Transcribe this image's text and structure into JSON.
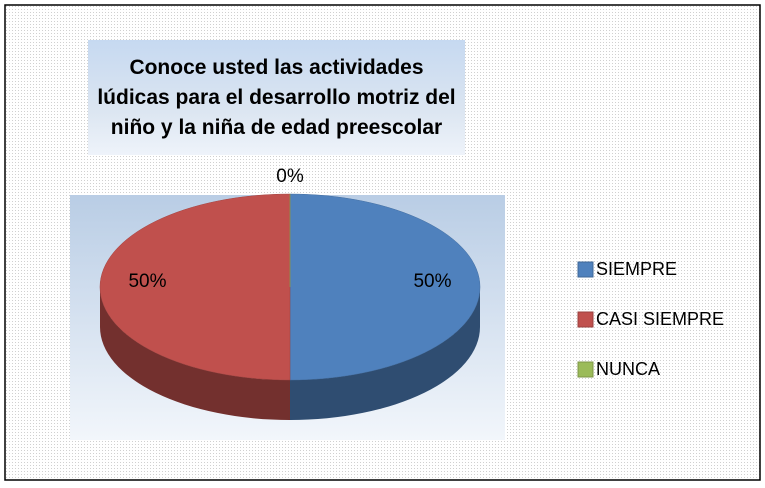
{
  "chart_data": {
    "type": "pie",
    "title": "Conoce usted las actividades lúdicas para el desarrollo motriz del niño y la niña de edad preescolar",
    "categories": [
      "SIEMPRE",
      "CASI SIEMPRE",
      "NUNCA"
    ],
    "values": [
      50,
      50,
      0
    ],
    "value_labels": [
      "50%",
      "50%",
      "0%"
    ],
    "colors": [
      "#4f81bd",
      "#c0504d",
      "#9bbb59"
    ],
    "legend": "right"
  }
}
